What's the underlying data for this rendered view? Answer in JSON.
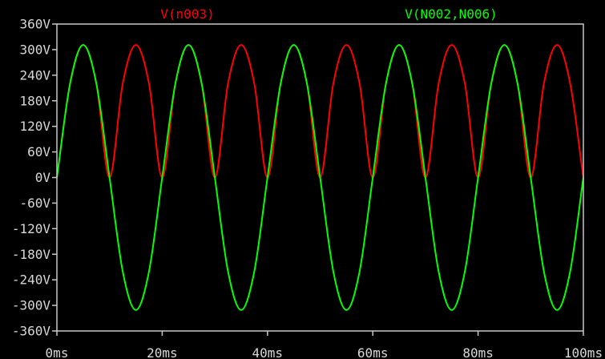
{
  "chart_data": {
    "type": "line",
    "title": "",
    "xlabel": "",
    "ylabel": "",
    "xlim": [
      0,
      100
    ],
    "ylim": [
      -360,
      360
    ],
    "grid": false,
    "legend_position": "top",
    "x_ticks": [
      0,
      20,
      40,
      60,
      80,
      100
    ],
    "x_tick_labels": [
      "0ms",
      "20ms",
      "40ms",
      "60ms",
      "80ms",
      "100ms"
    ],
    "y_ticks": [
      360,
      300,
      240,
      180,
      120,
      60,
      0,
      -60,
      -120,
      -180,
      -240,
      -300,
      -360
    ],
    "y_tick_labels": [
      "360V",
      "300V",
      "240V",
      "180V",
      "120V",
      "60V",
      "0V",
      "-60V",
      "-120V",
      "-180V",
      "-240V",
      "-300V",
      "-360V"
    ],
    "x": [
      0,
      2.5,
      5,
      7.5,
      10,
      12.5,
      15,
      17.5,
      20,
      22.5,
      25,
      27.5,
      30,
      32.5,
      35,
      37.5,
      40,
      42.5,
      45,
      47.5,
      50,
      52.5,
      55,
      57.5,
      60,
      62.5,
      65,
      67.5,
      70,
      72.5,
      75,
      77.5,
      80,
      82.5,
      85,
      87.5,
      90,
      92.5,
      95,
      97.5,
      100
    ],
    "series": [
      {
        "name": "V(n003)",
        "color": "#ff0000",
        "values": [
          0,
          220,
          311,
          220,
          0,
          220,
          311,
          220,
          0,
          220,
          311,
          220,
          0,
          220,
          311,
          220,
          0,
          220,
          311,
          220,
          0,
          220,
          311,
          220,
          0,
          220,
          311,
          220,
          0,
          220,
          311,
          220,
          0,
          220,
          311,
          220,
          0,
          220,
          311,
          220,
          0
        ]
      },
      {
        "name": "V(N002,N006)",
        "color": "#00ff00",
        "values": [
          0,
          220,
          311,
          220,
          0,
          -220,
          -311,
          -220,
          0,
          220,
          311,
          220,
          0,
          -220,
          -311,
          -220,
          0,
          220,
          311,
          220,
          0,
          -220,
          -311,
          -220,
          0,
          220,
          311,
          220,
          0,
          -220,
          -311,
          -220,
          0,
          220,
          311,
          220,
          0,
          -220,
          -311,
          -220,
          0
        ]
      }
    ]
  }
}
